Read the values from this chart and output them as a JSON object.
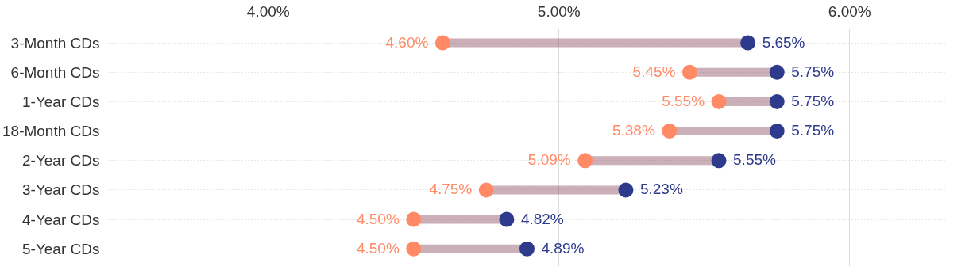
{
  "chart_data": {
    "type": "scatter",
    "orientation": "horizontal",
    "categories": [
      "3-Month CDs",
      "6-Month CDs",
      "1-Year CDs",
      "18-Month CDs",
      "2-Year CDs",
      "3-Year CDs",
      "4-Year CDs",
      "5-Year CDs"
    ],
    "series": [
      {
        "color": "#ff8a65",
        "values": [
          4.6,
          5.45,
          5.55,
          5.38,
          5.09,
          4.75,
          4.5,
          4.5
        ],
        "value_labels": [
          "4.60%",
          "5.45%",
          "5.55%",
          "5.38%",
          "5.09%",
          "4.75%",
          "4.50%",
          "4.50%"
        ]
      },
      {
        "color": "#2e3a8c",
        "values": [
          5.65,
          5.75,
          5.75,
          5.75,
          5.55,
          5.23,
          4.82,
          4.89
        ],
        "value_labels": [
          "5.65%",
          "5.75%",
          "5.75%",
          "5.75%",
          "5.55%",
          "5.23%",
          "4.82%",
          "4.89%"
        ]
      }
    ],
    "xlim": [
      3.45,
      6.33
    ],
    "xticks": [
      {
        "value": 4,
        "label": "4.00%"
      },
      {
        "value": 5,
        "label": "5.00%"
      },
      {
        "value": 6,
        "label": "6.00%"
      }
    ],
    "grid": true,
    "marker": "circle"
  }
}
